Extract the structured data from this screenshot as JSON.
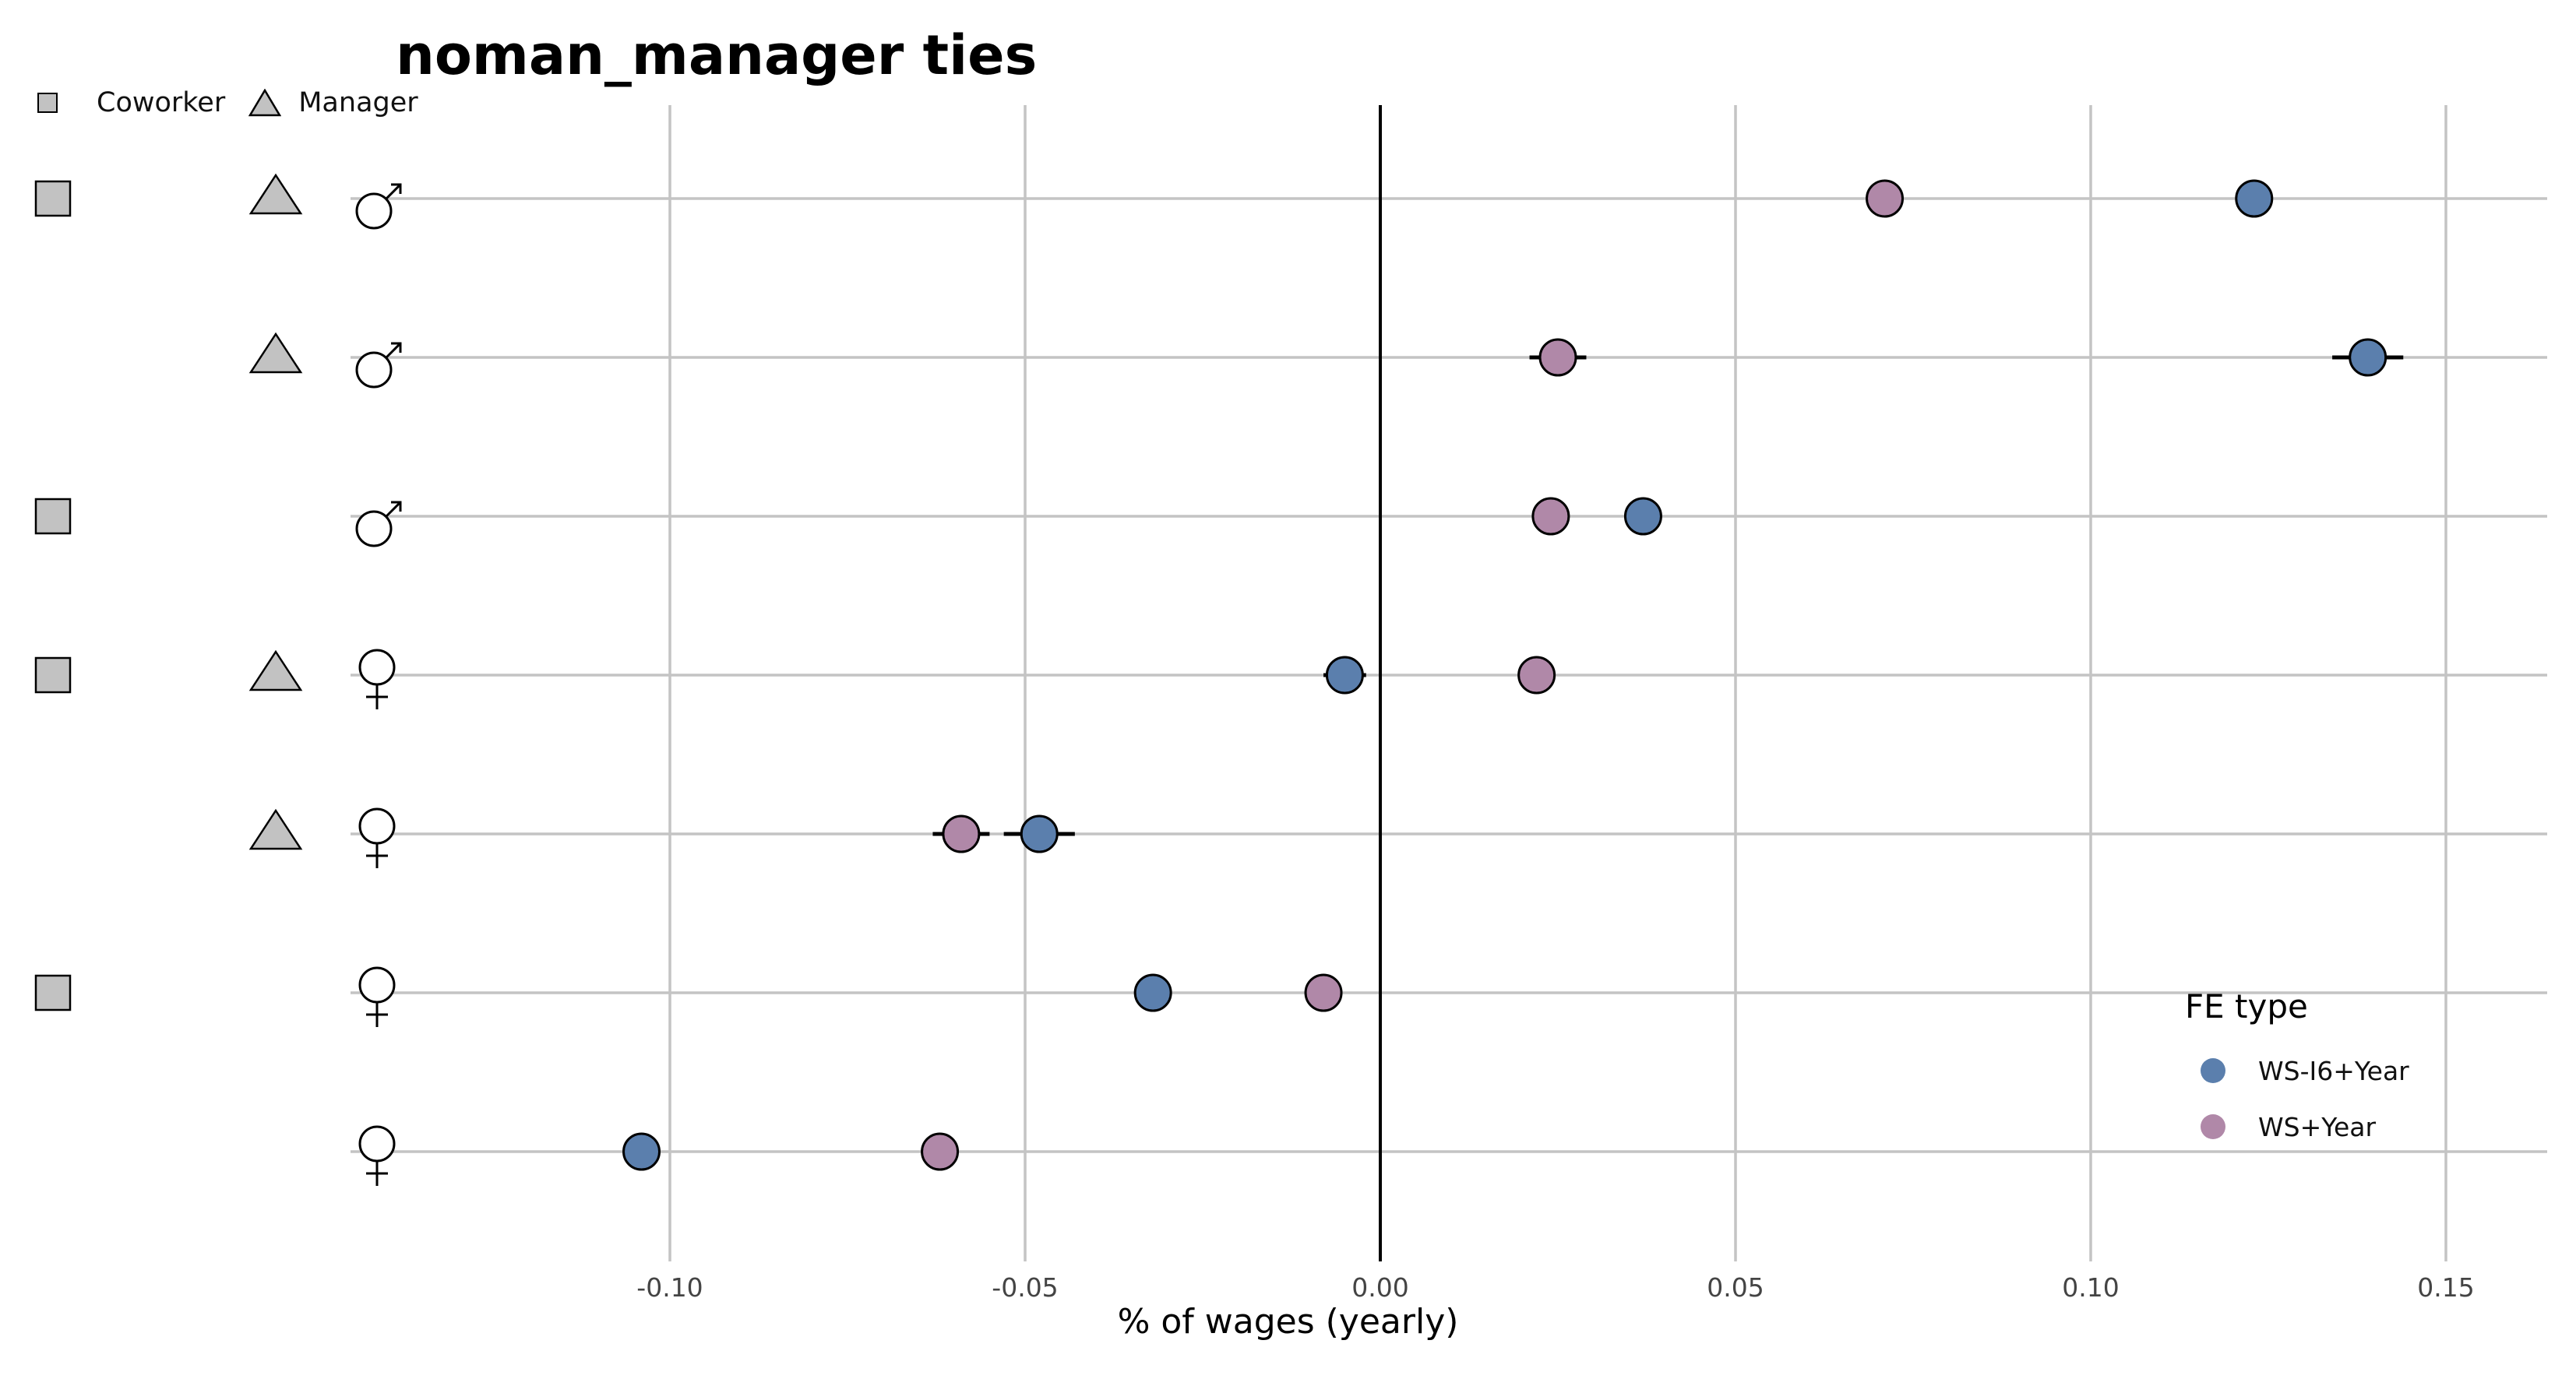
{
  "chart_data": {
    "type": "scatter",
    "title": "noman_manager ties",
    "xlabel": "% of wages (yearly)",
    "xlim": [
      -0.1,
      0.15
    ],
    "xticks": [
      -0.1,
      -0.05,
      0.0,
      0.05,
      0.1,
      0.15
    ],
    "xtick_labels": [
      "-0.10",
      "-0.05",
      "0.00",
      "0.05",
      "0.10",
      "0.15"
    ],
    "grid": true,
    "zero_line": true,
    "legend_position": "bottom-right",
    "shape_legend": {
      "position": "top-left",
      "items": [
        {
          "shape": "square",
          "label": "Coworker"
        },
        {
          "shape": "triangle",
          "label": "Manager"
        }
      ]
    },
    "legend": {
      "title": "FE type",
      "items": [
        {
          "label": "WS-I6+Year",
          "color": "#5b7fad"
        },
        {
          "label": "WS+Year",
          "color": "#b088a8"
        }
      ]
    },
    "rows": [
      {
        "coworker": true,
        "manager": true,
        "gender": "male",
        "gender_icon": "male-icon"
      },
      {
        "coworker": false,
        "manager": true,
        "gender": "male",
        "gender_icon": "male-icon"
      },
      {
        "coworker": true,
        "manager": false,
        "gender": "male",
        "gender_icon": "male-icon"
      },
      {
        "coworker": true,
        "manager": true,
        "gender": "female",
        "gender_icon": "female-icon"
      },
      {
        "coworker": false,
        "manager": true,
        "gender": "female",
        "gender_icon": "female-icon"
      },
      {
        "coworker": true,
        "manager": false,
        "gender": "female",
        "gender_icon": "female-icon"
      },
      {
        "coworker": false,
        "manager": false,
        "gender": "female",
        "gender_icon": "female-icon"
      }
    ],
    "series": [
      {
        "name": "WS-I6+Year",
        "color": "#5b7fad",
        "values": [
          0.123,
          0.139,
          0.037,
          -0.005,
          -0.048,
          -0.032,
          -0.104
        ],
        "ci_lower": [
          0.121,
          0.134,
          0.036,
          -0.008,
          -0.053,
          -0.033,
          -0.105
        ],
        "ci_upper": [
          0.125,
          0.144,
          0.038,
          -0.002,
          -0.043,
          -0.031,
          -0.103
        ]
      },
      {
        "name": "WS+Year",
        "color": "#b088a8",
        "values": [
          0.071,
          0.025,
          0.024,
          0.022,
          -0.059,
          -0.008,
          -0.062
        ],
        "ci_lower": [
          0.07,
          0.021,
          0.023,
          0.021,
          -0.063,
          -0.009,
          -0.063
        ],
        "ci_upper": [
          0.072,
          0.029,
          0.025,
          0.023,
          -0.055,
          -0.007,
          -0.061
        ]
      }
    ]
  }
}
